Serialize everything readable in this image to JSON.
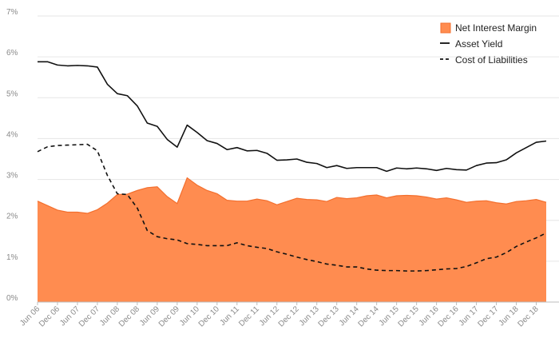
{
  "chart_data": {
    "type": "area",
    "title": "",
    "xlabel": "",
    "ylabel": "",
    "ylim": [
      0,
      7
    ],
    "y_ticks": [
      "0%",
      "1%",
      "2%",
      "3%",
      "4%",
      "5%",
      "6%",
      "7%"
    ],
    "x_tick_labels": [
      "Jun 06",
      "Dec 06",
      "Jun 07",
      "Dec 07",
      "Jun 08",
      "Dec 08",
      "Jun 09",
      "Dec 09",
      "Jun 10",
      "Dec 10",
      "Jun 11",
      "Dec 11",
      "Jun 12",
      "Dec 12",
      "Jun 13",
      "Dec 13",
      "Jun 14",
      "Dec 14",
      "Jun 15",
      "Dec 15",
      "Jun 16",
      "Dec 16",
      "Jun 17",
      "Dec 17",
      "Jun 18",
      "Dec 18"
    ],
    "x": [
      "Jun 06",
      "Sep 06",
      "Dec 06",
      "Mar 07",
      "Jun 07",
      "Sep 07",
      "Dec 07",
      "Mar 08",
      "Jun 08",
      "Sep 08",
      "Dec 08",
      "Mar 09",
      "Jun 09",
      "Sep 09",
      "Dec 09",
      "Mar 10",
      "Jun 10",
      "Sep 10",
      "Dec 10",
      "Mar 11",
      "Jun 11",
      "Sep 11",
      "Dec 11",
      "Mar 12",
      "Jun 12",
      "Sep 12",
      "Dec 12",
      "Mar 13",
      "Jun 13",
      "Sep 13",
      "Dec 13",
      "Mar 14",
      "Jun 14",
      "Sep 14",
      "Dec 14",
      "Mar 15",
      "Jun 15",
      "Sep 15",
      "Dec 15",
      "Mar 16",
      "Jun 16",
      "Sep 16",
      "Dec 16",
      "Mar 17",
      "Jun 17",
      "Sep 17",
      "Dec 17",
      "Mar 18",
      "Jun 18",
      "Sep 18",
      "Dec 18",
      "Mar 19"
    ],
    "series": [
      {
        "name": "Asset Yield",
        "style": "solid",
        "values": [
          5.88,
          5.88,
          5.8,
          5.78,
          5.79,
          5.78,
          5.75,
          5.33,
          5.1,
          5.05,
          4.8,
          4.38,
          4.3,
          3.98,
          3.79,
          4.33,
          4.15,
          3.95,
          3.88,
          3.73,
          3.78,
          3.7,
          3.71,
          3.64,
          3.47,
          3.48,
          3.5,
          3.42,
          3.39,
          3.29,
          3.34,
          3.27,
          3.29,
          3.29,
          3.29,
          3.2,
          3.28,
          3.26,
          3.28,
          3.26,
          3.22,
          3.27,
          3.24,
          3.23,
          3.34,
          3.4,
          3.41,
          3.48,
          3.65,
          3.78,
          3.91,
          3.94
        ]
      },
      {
        "name": "Cost of Liabilities",
        "style": "dashed",
        "values": [
          3.68,
          3.8,
          3.83,
          3.84,
          3.85,
          3.86,
          3.7,
          3.1,
          2.65,
          2.63,
          2.3,
          1.75,
          1.6,
          1.55,
          1.52,
          1.43,
          1.41,
          1.38,
          1.38,
          1.38,
          1.45,
          1.38,
          1.34,
          1.31,
          1.23,
          1.17,
          1.1,
          1.04,
          0.99,
          0.93,
          0.9,
          0.86,
          0.86,
          0.81,
          0.78,
          0.77,
          0.77,
          0.76,
          0.76,
          0.77,
          0.79,
          0.81,
          0.82,
          0.87,
          0.96,
          1.06,
          1.1,
          1.21,
          1.36,
          1.47,
          1.57,
          1.69
        ]
      },
      {
        "name": "Net Interest Margin",
        "style": "area",
        "values": [
          2.47,
          2.36,
          2.25,
          2.2,
          2.2,
          2.17,
          2.26,
          2.42,
          2.63,
          2.64,
          2.73,
          2.8,
          2.82,
          2.58,
          2.41,
          3.04,
          2.86,
          2.73,
          2.65,
          2.49,
          2.47,
          2.47,
          2.52,
          2.48,
          2.38,
          2.46,
          2.54,
          2.51,
          2.5,
          2.46,
          2.56,
          2.53,
          2.55,
          2.6,
          2.62,
          2.55,
          2.6,
          2.61,
          2.6,
          2.57,
          2.52,
          2.55,
          2.5,
          2.44,
          2.47,
          2.48,
          2.43,
          2.4,
          2.46,
          2.48,
          2.51,
          2.44
        ]
      }
    ],
    "legend": {
      "position": "top-right",
      "entries": [
        "Net Interest Margin",
        "Asset Yield",
        "Cost of Liabilities"
      ]
    },
    "colors": {
      "nim_fill": "#ff8c50",
      "nim_edge": "#f36f2e",
      "lines": "#111111",
      "grid": "#e6e6e6",
      "ticks": "#8a8a8a"
    },
    "grid": true
  }
}
